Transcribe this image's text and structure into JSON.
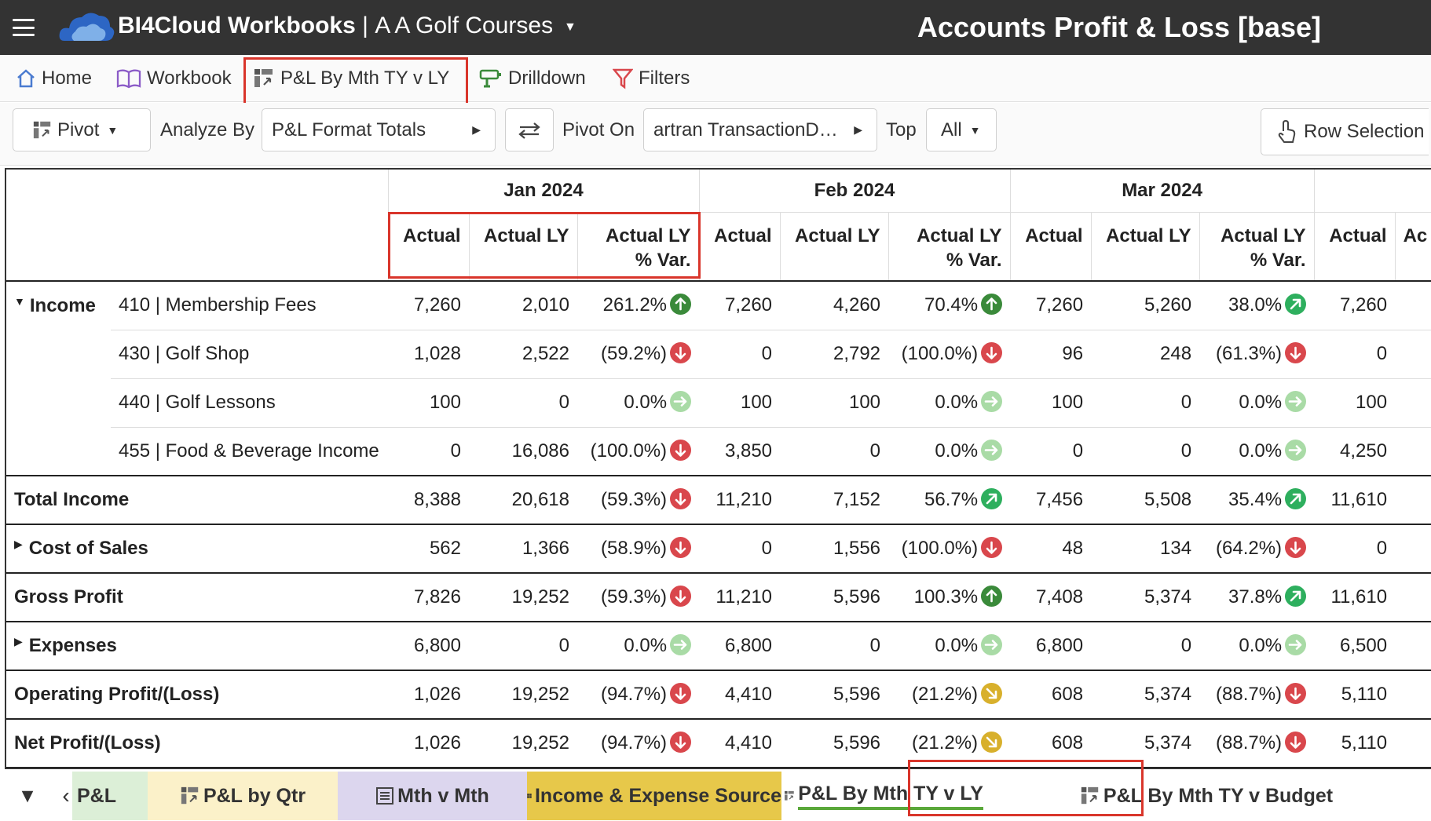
{
  "app": {
    "brand": "BI4Cloud Workbooks",
    "separator": "|",
    "company": "A A Golf Courses",
    "page_title": "Accounts Profit & Loss [base]"
  },
  "nav": [
    {
      "label": "Home"
    },
    {
      "label": "Workbook"
    },
    {
      "label": "P&L By Mth TY v LY"
    },
    {
      "label": "Drilldown"
    },
    {
      "label": "Filters"
    }
  ],
  "toolbar": {
    "pivot_label": "Pivot",
    "analyze_by_label": "Analyze By",
    "analyze_by_value": "P&L Format Totals",
    "pivot_on_label": "Pivot On",
    "pivot_on_value": "artran TransactionD…",
    "top_label": "Top",
    "top_value": "All",
    "row_selection_label": "Row Selection"
  },
  "grid": {
    "months": [
      "Jan 2024",
      "Feb 2024",
      "Mar 2024"
    ],
    "col_actual": "Actual",
    "col_actual_ly": "Actual LY",
    "col_var_1": "Actual LY",
    "col_var_2": "% Var.",
    "col_next": "Actual",
    "col_next2": "Ac",
    "rows": [
      {
        "label": "Income",
        "acct": "410 | Membership Fees",
        "vals": [
          "7,260",
          "2,010",
          "261.2%",
          "7,260",
          "4,260",
          "70.4%",
          "7,260",
          "5,260",
          "38.0%",
          "7,260"
        ],
        "ind": [
          "up-strong",
          "up-strong",
          "up"
        ]
      },
      {
        "label": "",
        "acct": "430 | Golf Shop",
        "vals": [
          "1,028",
          "2,522",
          "(59.2%)",
          "0",
          "2,792",
          "(100.0%)",
          "96",
          "248",
          "(61.3%)",
          "0"
        ],
        "ind": [
          "down",
          "down",
          "down"
        ]
      },
      {
        "label": "",
        "acct": "440 | Golf Lessons",
        "vals": [
          "100",
          "0",
          "0.0%",
          "100",
          "100",
          "0.0%",
          "100",
          "0",
          "0.0%",
          "100"
        ],
        "ind": [
          "flat",
          "flat",
          "flat"
        ]
      },
      {
        "label": "",
        "acct": "455 | Food & Beverage Income",
        "vals": [
          "0",
          "16,086",
          "(100.0%)",
          "3,850",
          "0",
          "0.0%",
          "0",
          "0",
          "0.0%",
          "4,250"
        ],
        "ind": [
          "down",
          "flat",
          "flat"
        ]
      },
      {
        "label": "Total Income",
        "acct": "",
        "vals": [
          "8,388",
          "20,618",
          "(59.3%)",
          "11,210",
          "7,152",
          "56.7%",
          "7,456",
          "5,508",
          "35.4%",
          "11,610"
        ],
        "ind": [
          "down",
          "up",
          "up"
        ]
      },
      {
        "label": "Cost of Sales",
        "acct": "",
        "vals": [
          "562",
          "1,366",
          "(58.9%)",
          "0",
          "1,556",
          "(100.0%)",
          "48",
          "134",
          "(64.2%)",
          "0"
        ],
        "ind": [
          "down",
          "down",
          "down"
        ]
      },
      {
        "label": "Gross Profit",
        "acct": "",
        "vals": [
          "7,826",
          "19,252",
          "(59.3%)",
          "11,210",
          "5,596",
          "100.3%",
          "7,408",
          "5,374",
          "37.8%",
          "11,610"
        ],
        "ind": [
          "down",
          "up-strong",
          "up"
        ]
      },
      {
        "label": "Expenses",
        "acct": "",
        "vals": [
          "6,800",
          "0",
          "0.0%",
          "6,800",
          "0",
          "0.0%",
          "6,800",
          "0",
          "0.0%",
          "6,500"
        ],
        "ind": [
          "flat",
          "flat",
          "flat"
        ]
      },
      {
        "label": "Operating Profit/(Loss)",
        "acct": "",
        "vals": [
          "1,026",
          "19,252",
          "(94.7%)",
          "4,410",
          "5,596",
          "(21.2%)",
          "608",
          "5,374",
          "(88.7%)",
          "5,110"
        ],
        "ind": [
          "down",
          "warn",
          "down"
        ]
      },
      {
        "label": "Net Profit/(Loss)",
        "acct": "",
        "vals": [
          "1,026",
          "19,252",
          "(94.7%)",
          "4,410",
          "5,596",
          "(21.2%)",
          "608",
          "5,374",
          "(88.7%)",
          "5,110"
        ],
        "ind": [
          "down",
          "warn",
          "down"
        ]
      }
    ]
  },
  "tabs": [
    {
      "label": "P&L",
      "color": "#dcefd7"
    },
    {
      "label": "P&L by Qtr",
      "color": "#fbf1c9"
    },
    {
      "label": "Mth v Mth",
      "color": "#dcd6ee"
    },
    {
      "label": "Income & Expense Source",
      "color": "#e7c84a"
    },
    {
      "label": "P&L By Mth TY v LY",
      "color": "#ffffff"
    },
    {
      "label": "P&L By Mth TY v Budget",
      "color": "#ffffff"
    }
  ],
  "colors": {
    "up_strong": "#3a8a3a",
    "up": "#2eaf5e",
    "flat": "#a9dba6",
    "down": "#d9474c",
    "warn": "#d8b02c",
    "highlight": "#d9352b"
  }
}
